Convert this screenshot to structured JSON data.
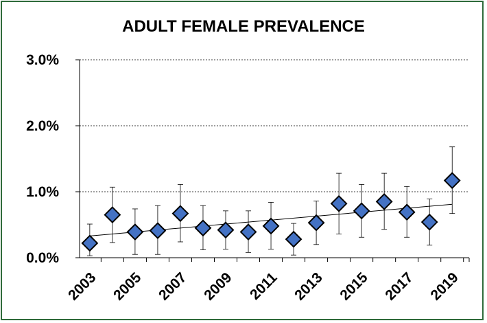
{
  "chart_data": {
    "type": "scatter",
    "title": "ADULT FEMALE PREVALENCE",
    "xlabel": "",
    "ylabel": "",
    "y_tick_labels": [
      "0.0%",
      "1.0%",
      "2.0%",
      "3.0%"
    ],
    "y_ticks": [
      0,
      1,
      2,
      3
    ],
    "x_tick_labels": [
      "2003",
      "2005",
      "2007",
      "2009",
      "2011",
      "2013",
      "2015",
      "2017",
      "2019"
    ],
    "x_ticks": [
      2003,
      2005,
      2007,
      2009,
      2011,
      2013,
      2015,
      2017,
      2019
    ],
    "xlim": [
      2002.55,
      2019.75
    ],
    "ylim": [
      0,
      3
    ],
    "grid": "horizontal dashed",
    "series": [
      {
        "x": [
          2003,
          2004,
          2005,
          2006,
          2007,
          2008,
          2009,
          2010,
          2011,
          2012,
          2013,
          2014,
          2015,
          2016,
          2017,
          2018,
          2019
        ],
        "values": [
          0.22,
          0.65,
          0.39,
          0.41,
          0.67,
          0.45,
          0.42,
          0.39,
          0.48,
          0.28,
          0.53,
          0.82,
          0.71,
          0.85,
          0.69,
          0.54,
          1.17
        ],
        "error_low": [
          0.03,
          0.23,
          0.05,
          0.05,
          0.24,
          0.12,
          0.13,
          0.08,
          0.13,
          0.04,
          0.2,
          0.36,
          0.31,
          0.43,
          0.31,
          0.19,
          0.67
        ],
        "error_high": [
          0.51,
          1.07,
          0.74,
          0.79,
          1.11,
          0.79,
          0.71,
          0.71,
          0.84,
          0.52,
          0.86,
          1.28,
          1.11,
          1.28,
          1.08,
          0.89,
          1.68
        ]
      }
    ],
    "trendline": {
      "x": [
        2003,
        2019
      ],
      "y": [
        0.33,
        0.81
      ]
    },
    "marker_color": "#4472c4",
    "marker_edge": "#000000",
    "grid_color": "#000000",
    "frame_color": "#2f6b3a"
  }
}
